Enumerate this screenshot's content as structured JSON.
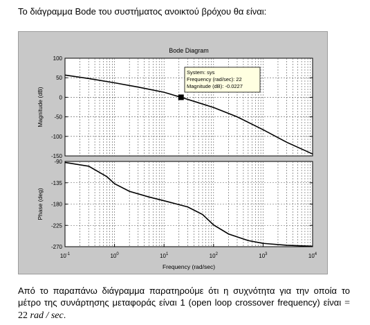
{
  "intro_text": "Το διάγραμμα Bode του συστήματος ανοικτού βρόχου θα είναι:",
  "chart_data": {
    "type": "line",
    "title": "Bode Diagram",
    "xlabel": "Frequency  (rad/sec)",
    "xscale": "log",
    "xlim": [
      0.1,
      10000
    ],
    "x_ticks": [
      {
        "base": "10",
        "exp": "-1"
      },
      {
        "base": "10",
        "exp": "0"
      },
      {
        "base": "10",
        "exp": "1"
      },
      {
        "base": "10",
        "exp": "2"
      },
      {
        "base": "10",
        "exp": "3"
      },
      {
        "base": "10",
        "exp": "4"
      }
    ],
    "grid": true,
    "magnitude": {
      "ylabel": "Magnitude (dB)",
      "ylim": [
        -150,
        100
      ],
      "yticks": [
        "100",
        "50",
        "0",
        "-50",
        "-100",
        "-150"
      ],
      "points": [
        [
          0.1,
          57
        ],
        [
          0.3,
          48
        ],
        [
          1,
          37
        ],
        [
          3,
          26
        ],
        [
          10,
          13
        ],
        [
          22,
          0
        ],
        [
          50,
          -14
        ],
        [
          100,
          -26
        ],
        [
          300,
          -50
        ],
        [
          1000,
          -83
        ],
        [
          3000,
          -115
        ],
        [
          10000,
          -145
        ]
      ]
    },
    "phase": {
      "ylabel": "Phase (deg)",
      "ylim": [
        -270,
        -90
      ],
      "yticks": [
        "-90",
        "-135",
        "-180",
        "-225",
        "-270"
      ],
      "points": [
        [
          0.1,
          -92
        ],
        [
          0.3,
          -100
        ],
        [
          0.7,
          -122
        ],
        [
          1,
          -137
        ],
        [
          2,
          -153
        ],
        [
          5,
          -165
        ],
        [
          10,
          -173
        ],
        [
          30,
          -186
        ],
        [
          60,
          -202
        ],
        [
          100,
          -224
        ],
        [
          200,
          -243
        ],
        [
          500,
          -257
        ],
        [
          1000,
          -263
        ],
        [
          3000,
          -267
        ],
        [
          10000,
          -269
        ]
      ]
    },
    "datatip": {
      "x": 22,
      "y": -0.0227,
      "lines": [
        "System: sys",
        "Frequency (rad/sec): 22",
        "Magnitude (dB): -0.0227"
      ]
    }
  },
  "outro": {
    "text": "Από το παραπάνω διάγραμμα παρατηρούμε ότι η  συχνότητα για την οποία το μέτρο της συνάρτησης μεταφοράς είναι 1 (open loop crossover frequency) είναι ",
    "math_eq": "= 22 ",
    "math_unit": "rad / sec",
    "tail": "."
  }
}
